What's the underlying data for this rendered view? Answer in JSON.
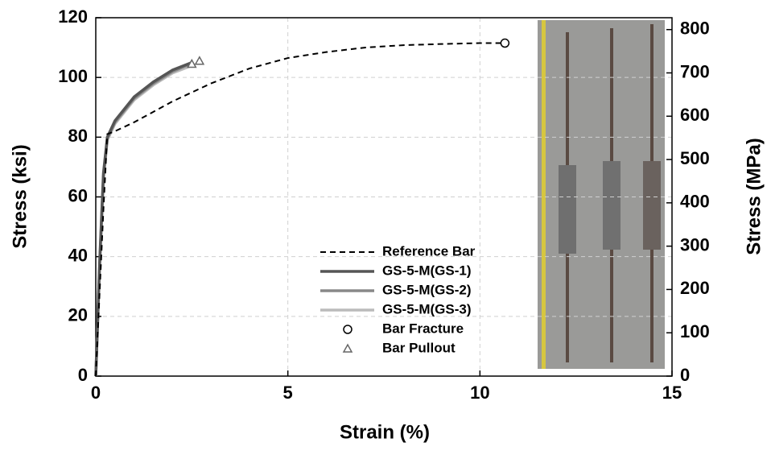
{
  "chart_data": {
    "type": "line",
    "x_label": "Strain (%)",
    "y_label": "Stress (ksi)",
    "y2_label": "Stress (MPa)",
    "xlim": [
      0,
      15
    ],
    "xticks": [
      0,
      5,
      10,
      15
    ],
    "ylim": [
      0,
      120
    ],
    "yticks": [
      0,
      20,
      40,
      60,
      80,
      100,
      120
    ],
    "y2lim": [
      0,
      827.37
    ],
    "y2ticks": [
      0,
      100,
      200,
      300,
      400,
      500,
      600,
      700,
      800
    ],
    "grid": true,
    "legend": "lower center",
    "series": [
      {
        "name": "Reference Bar",
        "color": "#000000",
        "style": "dashed",
        "x": [
          0,
          0.1,
          0.2,
          0.3,
          0.5,
          1,
          2,
          3,
          4,
          5,
          6,
          7,
          8,
          9,
          10,
          10.6
        ],
        "values": [
          0,
          28,
          56,
          81,
          82,
          85,
          92,
          98,
          103,
          106.5,
          108.5,
          110,
          110.8,
          111.2,
          111.5,
          111.5
        ]
      },
      {
        "name": "GS-5-M(GS-1)",
        "color": "#555555",
        "style": "solid",
        "x": [
          0,
          0.1,
          0.2,
          0.3,
          0.5,
          1,
          1.5,
          2,
          2.5
        ],
        "values": [
          0,
          38,
          68,
          80,
          85.5,
          93.5,
          98.5,
          102.5,
          105
        ]
      },
      {
        "name": "GS-5-M(GS-2)",
        "color": "#888888",
        "style": "solid",
        "x": [
          0,
          0.1,
          0.2,
          0.3,
          0.5,
          1,
          1.5,
          2,
          2.45
        ],
        "values": [
          0,
          37,
          67,
          79.5,
          85,
          93,
          98,
          102,
          104.5
        ]
      },
      {
        "name": "GS-5-M(GS-3)",
        "color": "#bbbbbb",
        "style": "solid",
        "x": [
          0,
          0.1,
          0.2,
          0.3,
          0.5,
          1,
          1.5,
          2,
          2.5
        ],
        "values": [
          0,
          36,
          66,
          79,
          84.5,
          92.5,
          97.5,
          101.5,
          104
        ]
      },
      {
        "name": "Bar Fracture",
        "color": "#000000",
        "style": "circle",
        "x": [
          10.65
        ],
        "values": [
          111.5
        ]
      },
      {
        "name": "Bar Pullout",
        "color": "#666666",
        "style": "triangle",
        "x": [
          2.5,
          2.7
        ],
        "values": [
          104.5,
          105.5
        ]
      }
    ]
  }
}
